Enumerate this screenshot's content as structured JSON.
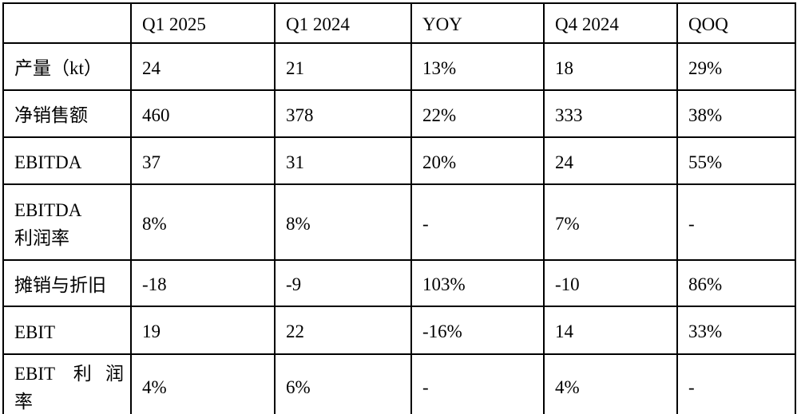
{
  "page": {
    "background": "#ffffff",
    "text_color": "#000000",
    "border_color": "#000000"
  },
  "table": {
    "headers": [
      "",
      "Q1 2025",
      "Q1 2024",
      "YOY",
      "Q4 2024",
      "QOQ"
    ],
    "rows": [
      {
        "label": "产量（kt）",
        "label_lines": [
          "产量（kt）"
        ],
        "values": [
          "24",
          "21",
          "13%",
          "18",
          "29%"
        ]
      },
      {
        "label": "净销售额",
        "label_lines": [
          "净销售额"
        ],
        "values": [
          "460",
          "378",
          "22%",
          "333",
          "38%"
        ]
      },
      {
        "label": "EBITDA",
        "label_lines": [
          "EBITDA"
        ],
        "values": [
          "37",
          "31",
          "20%",
          "24",
          "55%"
        ]
      },
      {
        "label": "EBITDA 利润率",
        "label_lines": [
          "EBITDA",
          "利润率"
        ],
        "values": [
          "8%",
          "8%",
          "-",
          "7%",
          "-"
        ]
      },
      {
        "label": "摊销与折旧",
        "label_lines": [
          "摊销与折旧"
        ],
        "values": [
          "-18",
          "-9",
          "103%",
          "-10",
          "86%"
        ]
      },
      {
        "label": "EBIT",
        "label_lines": [
          "EBIT"
        ],
        "values": [
          "19",
          "22",
          "-16%",
          "14",
          "33%"
        ]
      },
      {
        "label": "EBIT 利润率",
        "label_lines": [
          "EBIT 利润",
          "率"
        ],
        "values": [
          "4%",
          "6%",
          "-",
          "4%",
          "-"
        ]
      }
    ]
  }
}
